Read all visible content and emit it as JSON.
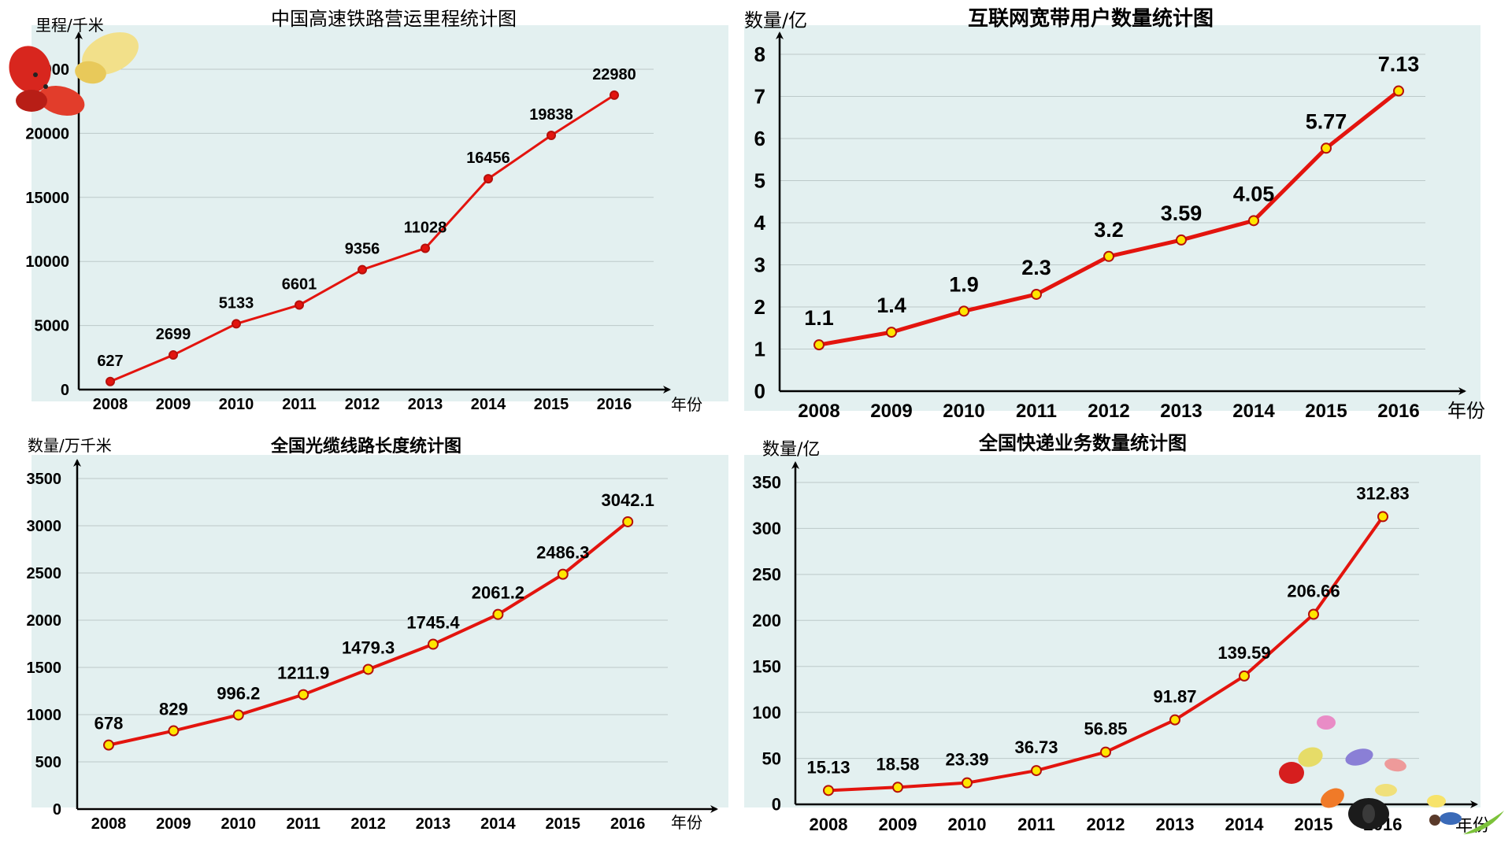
{
  "charts": [
    {
      "title": "中国高速铁路营运里程统计图",
      "ylabel": "里程/千米",
      "xlabel": "年份"
    },
    {
      "title": "互联网宽带用户数量统计图",
      "ylabel": "数量/亿",
      "xlabel": "年份"
    },
    {
      "title": "全国光缆线路长度统计图",
      "ylabel": "数量/万千米",
      "xlabel": "年份"
    },
    {
      "title": "全国快递业务数量统计图",
      "ylabel": "数量/亿",
      "xlabel": "年份"
    }
  ],
  "colors": {
    "panel_bg": "#e3f0f0",
    "line": "#e3140e",
    "marker_fill_rail": "#e3140e",
    "marker_fill_other": "#ffe600",
    "marker_stroke": "#b5100b",
    "grid": "#bcc9c9",
    "axis": "#000000"
  },
  "chart_data": [
    {
      "type": "line",
      "title": "中国高速铁路营运里程统计图",
      "xlabel": "年份",
      "ylabel": "里程/千米",
      "categories": [
        "2008",
        "2009",
        "2010",
        "2011",
        "2012",
        "2013",
        "2014",
        "2015",
        "2016"
      ],
      "values": [
        627,
        2699,
        5133,
        6601,
        9356,
        11028,
        16456,
        19838,
        22980
      ],
      "yticks": [
        0,
        5000,
        10000,
        15000,
        20000,
        25000
      ],
      "ylim": [
        0,
        25000
      ],
      "grid": true
    },
    {
      "type": "line",
      "title": "互联网宽带用户数量统计图",
      "xlabel": "年份",
      "ylabel": "数量/亿",
      "categories": [
        "2008",
        "2009",
        "2010",
        "2011",
        "2012",
        "2013",
        "2014",
        "2015",
        "2016"
      ],
      "values": [
        1.1,
        1.4,
        1.9,
        2.3,
        3.2,
        3.59,
        4.05,
        5.77,
        7.13
      ],
      "yticks": [
        0,
        1,
        2,
        3,
        4,
        5,
        6,
        7,
        8
      ],
      "ylim": [
        0,
        8
      ],
      "grid": true
    },
    {
      "type": "line",
      "title": "全国光缆线路长度统计图",
      "xlabel": "年份",
      "ylabel": "数量/万千米",
      "categories": [
        "2008",
        "2009",
        "2010",
        "2011",
        "2012",
        "2013",
        "2014",
        "2015",
        "2016"
      ],
      "values": [
        678,
        829,
        996.2,
        1211.9,
        1479.3,
        1745.4,
        2061.2,
        2486.3,
        3042.1
      ],
      "yticks": [
        0,
        500,
        1000,
        1500,
        2000,
        2500,
        3000,
        3500
      ],
      "ylim": [
        0,
        3500
      ],
      "grid": true
    },
    {
      "type": "line",
      "title": "全国快递业务数量统计图",
      "xlabel": "年份",
      "ylabel": "数量/亿",
      "categories": [
        "2008",
        "2009",
        "2010",
        "2011",
        "2012",
        "2013",
        "2014",
        "2015",
        "2016"
      ],
      "values": [
        15.13,
        18.58,
        23.39,
        36.73,
        56.85,
        91.87,
        139.59,
        206.66,
        312.83
      ],
      "yticks": [
        0,
        50,
        100,
        150,
        200,
        250,
        300,
        350
      ],
      "ylim": [
        0,
        350
      ],
      "grid": true
    }
  ]
}
